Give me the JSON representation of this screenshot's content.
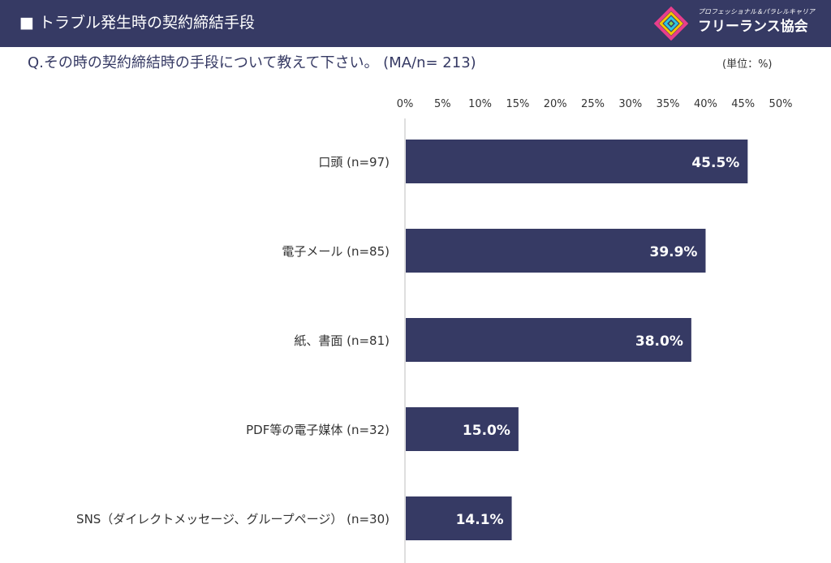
{
  "header": {
    "title": "■ トラブル発生時の契約締結手段",
    "logo": {
      "icon": "logo-mark-icon",
      "tagline": "プロフェッショナル＆パラレルキャリア",
      "name": "フリーランス協会"
    }
  },
  "question": "Q.その時の契約締結時の手段について教えて下さい。 (MA/n= 213)",
  "unit": "(単位：%)",
  "colors": {
    "header_bg": "#363a64",
    "bar": "#363a64",
    "bar_label": "#ffffff",
    "axis_text": "#333333"
  },
  "chart_data": {
    "type": "bar",
    "orientation": "horizontal",
    "categories": [
      "口頭 (n=97)",
      "電子メール (n=85)",
      "紙、書面 (n=81)",
      "PDF等の電子媒体 (n=32)",
      "SNS（ダイレクトメッセージ、グループページ） (n=30)"
    ],
    "values": [
      45.5,
      39.9,
      38.0,
      15.0,
      14.1
    ],
    "value_labels": [
      "45.5%",
      "39.9%",
      "38.0%",
      "15.0%",
      "14.1%"
    ],
    "xlim": [
      0,
      50
    ],
    "xticks": [
      "0%",
      "5%",
      "10%",
      "15%",
      "20%",
      "25%",
      "30%",
      "35%",
      "40%",
      "45%",
      "50%"
    ],
    "xaxis_position": "top",
    "grid": false,
    "legend": "none"
  }
}
